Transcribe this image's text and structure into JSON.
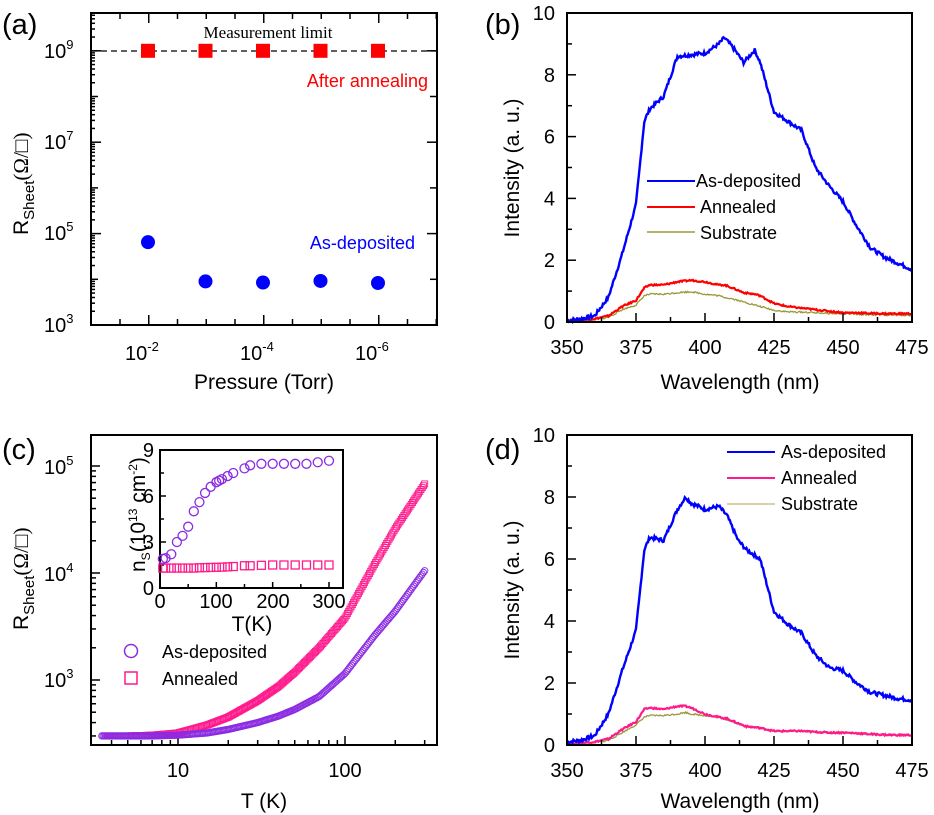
{
  "figure": {
    "panels": [
      "(a)",
      "(b)",
      "(c)",
      "(d)"
    ]
  },
  "chart_data": [
    {
      "id": "a",
      "type": "scatter",
      "panel_label": "(a)",
      "xlabel": "Pressure (Torr)",
      "ylabel": "R_Sheet (Ω/□)",
      "xscale": "log",
      "yscale": "log",
      "x_reversed": true,
      "xticks": [
        "10^-2",
        "10^-4",
        "10^-6"
      ],
      "yticks": [
        "10^3",
        "10^5",
        "10^7",
        "10^9"
      ],
      "ylim": [
        1000,
        10000000000
      ],
      "annotations": [
        {
          "text": "Measurement limit",
          "type": "dashed-hline",
          "y": 1000000000
        },
        {
          "text": "After annealing",
          "color": "#ff0000"
        },
        {
          "text": "As-deposited",
          "color": "#0000ff"
        }
      ],
      "series": [
        {
          "name": "After annealing",
          "marker": "square",
          "color": "#ff0000",
          "x": [
            0.01,
            0.001,
            0.0001,
            1e-05,
            1e-06
          ],
          "y": [
            1000000000,
            1000000000,
            1000000000,
            1000000000,
            1000000000
          ]
        },
        {
          "name": "As-deposited",
          "marker": "circle",
          "color": "#0000ff",
          "x": [
            0.01,
            0.001,
            0.0001,
            1e-05,
            1e-06
          ],
          "y": [
            65000,
            9000,
            8500,
            9200,
            8300
          ]
        }
      ]
    },
    {
      "id": "b",
      "type": "line",
      "panel_label": "(b)",
      "xlabel": "Wavelength (nm)",
      "ylabel": "Intensity (a. u.)",
      "xlim": [
        350,
        475
      ],
      "ylim": [
        0,
        10
      ],
      "xticks": [
        350,
        375,
        400,
        425,
        450,
        475
      ],
      "yticks": [
        0,
        2,
        4,
        6,
        8,
        10
      ],
      "legend": [
        "As-deposited",
        "Annealed",
        "Substrate"
      ],
      "x": [
        350,
        355,
        360,
        365,
        370,
        375,
        378,
        380,
        385,
        390,
        395,
        400,
        405,
        407,
        410,
        414,
        418,
        420,
        425,
        430,
        435,
        440,
        445,
        450,
        455,
        460,
        465,
        470,
        475
      ],
      "series": [
        {
          "name": "As-deposited",
          "color": "#0000ff",
          "values": [
            0.05,
            0.1,
            0.2,
            0.8,
            2.2,
            3.8,
            6.5,
            6.9,
            7.3,
            8.6,
            8.65,
            8.7,
            9.0,
            9.2,
            8.9,
            8.4,
            8.8,
            8.4,
            6.8,
            6.5,
            6.2,
            5.0,
            4.4,
            3.9,
            3.1,
            2.4,
            2.1,
            1.9,
            1.7
          ]
        },
        {
          "name": "Annealed",
          "color": "#ff0000",
          "values": [
            0.05,
            0.07,
            0.1,
            0.2,
            0.5,
            0.7,
            1.1,
            1.2,
            1.2,
            1.3,
            1.35,
            1.3,
            1.2,
            1.2,
            1.1,
            0.95,
            0.9,
            0.85,
            0.6,
            0.5,
            0.45,
            0.4,
            0.35,
            0.3,
            0.3,
            0.28,
            0.27,
            0.27,
            0.27
          ]
        },
        {
          "name": "Substrate",
          "color": "#9a9a3a",
          "values": [
            0.03,
            0.05,
            0.08,
            0.15,
            0.4,
            0.55,
            0.85,
            0.9,
            0.9,
            0.95,
            0.98,
            0.9,
            0.85,
            0.8,
            0.75,
            0.65,
            0.55,
            0.5,
            0.38,
            0.33,
            0.32,
            0.3,
            0.28,
            0.27,
            0.25,
            0.24,
            0.23,
            0.22,
            0.22
          ]
        }
      ]
    },
    {
      "id": "c",
      "type": "scatter",
      "panel_label": "(c)",
      "xlabel": "T (K)",
      "ylabel": "R_Sheet (Ω/□)",
      "xscale": "log",
      "yscale": "log",
      "xticks": [
        "10",
        "100"
      ],
      "yticks": [
        "10^3",
        "10^4",
        "10^5"
      ],
      "xlim": [
        3,
        330
      ],
      "ylim": [
        200,
        150000
      ],
      "legend": [
        "As-deposited",
        "Annealed"
      ],
      "series": [
        {
          "name": "As-deposited",
          "marker": "open-circle",
          "color": "#8b2be2",
          "x": [
            3.5,
            5,
            7,
            10,
            15,
            20,
            30,
            40,
            50,
            70,
            100,
            150,
            200,
            300
          ],
          "y": [
            300,
            300,
            300,
            305,
            320,
            345,
            400,
            460,
            530,
            700,
            1150,
            2600,
            4400,
            10500
          ]
        },
        {
          "name": "Annealed",
          "marker": "open-square",
          "color": "#ff1a8c",
          "x": [
            3.7,
            5,
            7,
            10,
            15,
            20,
            30,
            40,
            50,
            70,
            100,
            150,
            200,
            300
          ],
          "y": [
            300,
            300,
            305,
            320,
            380,
            450,
            640,
            870,
            1180,
            2000,
            3800,
            12000,
            26000,
            68000
          ]
        }
      ],
      "inset": {
        "type": "scatter",
        "xlabel": "T(K)",
        "ylabel": "n_S (10^13 cm^-2)",
        "xlim": [
          0,
          300
        ],
        "ylim": [
          0,
          9
        ],
        "xticks": [
          0,
          100,
          200,
          300
        ],
        "yticks": [
          0,
          3,
          6,
          9
        ],
        "series": [
          {
            "name": "As-deposited",
            "marker": "open-circle",
            "color": "#8b2be2",
            "x": [
              5,
              10,
              20,
              30,
              40,
              50,
              60,
              70,
              80,
              90,
              100,
              105,
              110,
              120,
              130,
              150,
              160,
              180,
              200,
              220,
              240,
              260,
              280,
              300
            ],
            "y": [
              1.9,
              1.95,
              2.2,
              3.0,
              3.4,
              4.0,
              5.0,
              5.6,
              6.2,
              6.6,
              6.9,
              7.0,
              7.1,
              7.3,
              7.5,
              7.8,
              8.0,
              8.1,
              8.1,
              8.1,
              8.1,
              8.1,
              8.2,
              8.3
            ]
          },
          {
            "name": "Annealed",
            "marker": "open-square",
            "color": "#ff1a8c",
            "x": [
              5,
              10,
              20,
              30,
              40,
              50,
              60,
              70,
              80,
              90,
              100,
              110,
              120,
              130,
              150,
              160,
              180,
              200,
              220,
              240,
              260,
              280,
              300
            ],
            "y": [
              1.3,
              1.3,
              1.3,
              1.3,
              1.3,
              1.3,
              1.3,
              1.32,
              1.33,
              1.34,
              1.35,
              1.36,
              1.38,
              1.4,
              1.45,
              1.45,
              1.48,
              1.5,
              1.5,
              1.5,
              1.5,
              1.5,
              1.5
            ]
          }
        ]
      }
    },
    {
      "id": "d",
      "type": "line",
      "panel_label": "(d)",
      "xlabel": "Wavelength (nm)",
      "ylabel": "Intensity (a. u.)",
      "xlim": [
        350,
        475
      ],
      "ylim": [
        0,
        10
      ],
      "xticks": [
        350,
        375,
        400,
        425,
        450,
        475
      ],
      "yticks": [
        0,
        2,
        4,
        6,
        8,
        10
      ],
      "legend": [
        "As-deposited",
        "Annealed",
        "Substrate"
      ],
      "x": [
        350,
        355,
        360,
        365,
        370,
        375,
        378,
        380,
        385,
        390,
        393,
        395,
        400,
        405,
        408,
        412,
        415,
        420,
        425,
        430,
        435,
        440,
        445,
        450,
        455,
        460,
        465,
        470,
        475
      ],
      "series": [
        {
          "name": "As-deposited",
          "color": "#0000ff",
          "values": [
            0.1,
            0.15,
            0.3,
            1.0,
            2.4,
            3.7,
            6.3,
            6.7,
            6.6,
            7.6,
            8.0,
            7.8,
            7.6,
            7.7,
            7.4,
            6.6,
            6.3,
            6.0,
            4.3,
            3.9,
            3.6,
            2.9,
            2.5,
            2.4,
            2.0,
            1.7,
            1.6,
            1.5,
            1.45
          ]
        },
        {
          "name": "Annealed",
          "color": "#ff1a8c",
          "values": [
            0.05,
            0.07,
            0.1,
            0.2,
            0.5,
            0.75,
            1.15,
            1.2,
            1.15,
            1.25,
            1.25,
            1.2,
            1.0,
            0.9,
            0.85,
            0.7,
            0.6,
            0.55,
            0.45,
            0.45,
            0.45,
            0.42,
            0.4,
            0.4,
            0.38,
            0.35,
            0.33,
            0.32,
            0.32
          ]
        },
        {
          "name": "Substrate",
          "color": "#9a9a3a",
          "values": [
            0.03,
            0.05,
            0.08,
            0.15,
            0.4,
            0.65,
            0.9,
            0.95,
            0.95,
            1.0,
            1.05,
            1.0,
            0.95,
            0.88,
            0.82,
            0.68,
            0.6,
            0.55,
            0.45,
            0.45,
            0.45,
            0.42,
            0.4,
            0.4,
            0.38,
            0.35,
            0.33,
            0.32,
            0.32
          ]
        }
      ]
    }
  ],
  "labels": {
    "a": {
      "panel": "(a)",
      "xlabel": "Pressure (Torr)",
      "ylabel_main": "R",
      "ylabel_sub": "Sheet",
      "ylabel_unit": "(Ω/□)",
      "measurement_limit": "Measurement limit",
      "after_annealing": "After annealing",
      "as_deposited": "As-deposited",
      "yticks": [
        {
          "base": "10",
          "exp": "9"
        },
        {
          "base": "10",
          "exp": "7"
        },
        {
          "base": "10",
          "exp": "5"
        },
        {
          "base": "10",
          "exp": "3"
        }
      ],
      "xticks": [
        {
          "base": "10",
          "exp": "-2"
        },
        {
          "base": "10",
          "exp": "-4"
        },
        {
          "base": "10",
          "exp": "-6"
        }
      ]
    },
    "b": {
      "panel": "(b)",
      "xlabel": "Wavelength (nm)",
      "ylabel": "Intensity (a. u.)",
      "legend": [
        "As-deposited",
        "Annealed",
        "Substrate"
      ],
      "xticks": [
        "350",
        "375",
        "400",
        "425",
        "450",
        "475"
      ],
      "yticks": [
        "0",
        "2",
        "4",
        "6",
        "8",
        "10"
      ]
    },
    "c": {
      "panel": "(c)",
      "xlabel": "T (K)",
      "ylabel_main": "R",
      "ylabel_sub": "Sheet",
      "ylabel_unit": "(Ω/□)",
      "legend": [
        "As-deposited",
        "Annealed"
      ],
      "yticks": [
        {
          "base": "10",
          "exp": "5"
        },
        {
          "base": "10",
          "exp": "4"
        },
        {
          "base": "10",
          "exp": "3"
        }
      ],
      "xticks": [
        "10",
        "100"
      ],
      "inset_xlabel": "T(K)",
      "inset_ylabel_main": "n",
      "inset_ylabel_sub": "S",
      "inset_ylabel_unit_a": "(10",
      "inset_ylabel_unit_exp": "13",
      "inset_ylabel_unit_b": " cm",
      "inset_ylabel_unit_exp2": "-2",
      "inset_ylabel_unit_c": ")",
      "inset_xticks": [
        "0",
        "100",
        "200",
        "300"
      ],
      "inset_yticks": [
        "0",
        "3",
        "6",
        "9"
      ]
    },
    "d": {
      "panel": "(d)",
      "xlabel": "Wavelength (nm)",
      "ylabel": "Intensity (a. u.)",
      "legend": [
        "As-deposited",
        "Annealed",
        "Substrate"
      ],
      "xticks": [
        "350",
        "375",
        "400",
        "425",
        "450",
        "475"
      ],
      "yticks": [
        "0",
        "2",
        "4",
        "6",
        "8",
        "10"
      ]
    }
  }
}
